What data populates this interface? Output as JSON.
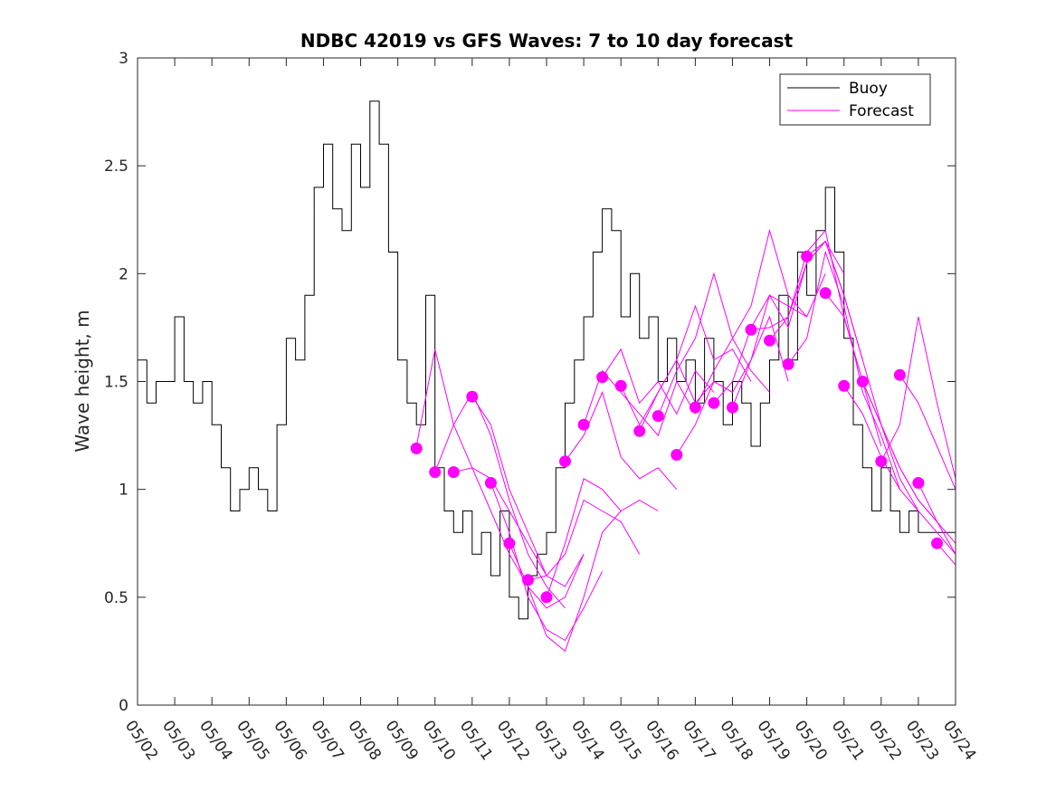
{
  "chart_data": {
    "type": "line",
    "title": "NDBC 42019 vs GFS Waves: 7 to 10 day forecast",
    "xlabel": "",
    "ylabel": "Wave height, m",
    "xlim": [
      "05/02",
      "05/24"
    ],
    "ylim": [
      0,
      3
    ],
    "x_ticks": [
      "05/02",
      "05/03",
      "05/04",
      "05/05",
      "05/06",
      "05/07",
      "05/08",
      "05/09",
      "05/10",
      "05/11",
      "05/12",
      "05/13",
      "05/14",
      "05/15",
      "05/16",
      "05/17",
      "05/18",
      "05/19",
      "05/20",
      "05/21",
      "05/22",
      "05/23",
      "05/24"
    ],
    "y_ticks": [
      "0",
      "0.5",
      "1",
      "1.5",
      "2",
      "2.5",
      "3"
    ],
    "legend": {
      "placement": "top-right",
      "entries": [
        "Buoy",
        "Forecast"
      ]
    },
    "colors": {
      "buoy": "#000000",
      "forecast": "#ff00ff",
      "axes": "#262626"
    },
    "buoy": {
      "name": "Buoy",
      "x": [
        "05/02 00:00",
        "05/02 06:00",
        "05/02 12:00",
        "05/03 00:00",
        "05/03 06:00",
        "05/03 12:00",
        "05/03 18:00",
        "05/04 00:00",
        "05/04 06:00",
        "05/04 12:00",
        "05/04 18:00",
        "05/05 00:00",
        "05/05 06:00",
        "05/05 12:00",
        "05/05 18:00",
        "05/06 00:00",
        "05/06 06:00",
        "05/06 12:00",
        "05/06 18:00",
        "05/07 00:00",
        "05/07 06:00",
        "05/07 12:00",
        "05/07 18:00",
        "05/08 00:00",
        "05/08 06:00",
        "05/08 12:00",
        "05/08 18:00",
        "05/09 00:00",
        "05/09 06:00",
        "05/09 12:00",
        "05/09 18:00",
        "05/10 00:00",
        "05/10 06:00",
        "05/10 12:00",
        "05/10 18:00",
        "05/11 00:00",
        "05/11 06:00",
        "05/11 12:00",
        "05/11 18:00",
        "05/12 00:00",
        "05/12 06:00",
        "05/12 12:00",
        "05/12 18:00",
        "05/13 00:00",
        "05/13 06:00",
        "05/13 12:00",
        "05/13 18:00",
        "05/14 00:00",
        "05/14 06:00",
        "05/14 12:00",
        "05/14 18:00",
        "05/15 00:00",
        "05/15 06:00",
        "05/15 12:00",
        "05/15 18:00",
        "05/16 00:00",
        "05/16 06:00",
        "05/16 12:00",
        "05/16 18:00",
        "05/17 00:00",
        "05/17 06:00",
        "05/17 12:00",
        "05/17 18:00",
        "05/18 00:00",
        "05/18 06:00",
        "05/18 12:00",
        "05/18 18:00",
        "05/19 00:00",
        "05/19 06:00",
        "05/19 12:00",
        "05/19 18:00",
        "05/20 00:00",
        "05/20 06:00",
        "05/20 12:00",
        "05/20 18:00",
        "05/21 00:00",
        "05/21 06:00",
        "05/21 12:00",
        "05/21 18:00",
        "05/22 00:00",
        "05/22 06:00",
        "05/22 12:00",
        "05/22 18:00",
        "05/23 00:00",
        "05/23 06:00",
        "05/23 12:00",
        "05/23 18:00",
        "05/24 00:00"
      ],
      "y": [
        1.6,
        1.4,
        1.5,
        1.8,
        1.5,
        1.4,
        1.5,
        1.3,
        1.1,
        0.9,
        1.0,
        1.1,
        1.0,
        0.9,
        1.3,
        1.7,
        1.6,
        1.9,
        2.4,
        2.6,
        2.3,
        2.2,
        2.6,
        2.4,
        2.8,
        2.6,
        2.1,
        1.6,
        1.4,
        1.3,
        1.9,
        1.1,
        0.9,
        0.8,
        0.9,
        0.7,
        0.8,
        0.6,
        0.9,
        0.5,
        0.4,
        0.6,
        0.7,
        0.8,
        1.1,
        1.4,
        1.6,
        1.8,
        2.1,
        2.3,
        2.2,
        1.8,
        2.0,
        1.7,
        1.8,
        1.5,
        1.7,
        1.5,
        1.6,
        1.4,
        1.7,
        1.5,
        1.3,
        1.5,
        1.4,
        1.2,
        1.4,
        1.6,
        1.9,
        1.6,
        2.1,
        1.9,
        2.2,
        2.4,
        2.1,
        1.7,
        1.3,
        1.1,
        0.9,
        1.1,
        0.9,
        0.8,
        0.9,
        0.8,
        0.8,
        0.8,
        0.8,
        0.8
      ]
    },
    "forecast_series": [
      {
        "x": [
          "05/09 12:00",
          "05/10 00:00",
          "05/10 12:00",
          "05/11 00:00",
          "05/11 12:00",
          "05/12 00:00",
          "05/12 12:00",
          "05/13 00:00"
        ],
        "y": [
          1.2,
          1.65,
          1.3,
          1.1,
          1.05,
          0.9,
          0.75,
          0.6
        ]
      },
      {
        "x": [
          "05/10 00:00",
          "05/10 12:00",
          "05/11 00:00",
          "05/11 12:00",
          "05/12 00:00",
          "05/12 12:00",
          "05/13 00:00",
          "05/13 12:00"
        ],
        "y": [
          1.08,
          1.3,
          1.45,
          1.25,
          0.95,
          0.7,
          0.55,
          0.45
        ]
      },
      {
        "x": [
          "05/10 12:00",
          "05/11 00:00",
          "05/11 12:00",
          "05/12 00:00",
          "05/12 12:00",
          "05/13 00:00",
          "05/13 12:00",
          "05/14 00:00"
        ],
        "y": [
          1.08,
          1.1,
          0.9,
          0.7,
          0.55,
          0.45,
          0.5,
          0.7
        ]
      },
      {
        "x": [
          "05/11 00:00",
          "05/11 12:00",
          "05/12 00:00",
          "05/12 12:00",
          "05/13 00:00",
          "05/13 12:00",
          "05/14 00:00"
        ],
        "y": [
          1.43,
          1.3,
          1.0,
          0.8,
          0.6,
          0.55,
          0.7
        ]
      },
      {
        "x": [
          "05/11 12:00",
          "05/12 00:00",
          "05/12 12:00",
          "05/13 00:00",
          "05/13 12:00",
          "05/14 00:00",
          "05/14 12:00"
        ],
        "y": [
          1.03,
          0.8,
          0.5,
          0.35,
          0.3,
          0.45,
          0.62
        ]
      },
      {
        "x": [
          "05/12 00:00",
          "05/12 12:00",
          "05/13 00:00",
          "05/13 12:00",
          "05/14 00:00",
          "05/14 12:00",
          "05/15 00:00"
        ],
        "y": [
          0.75,
          0.55,
          0.32,
          0.25,
          0.5,
          0.8,
          0.9
        ]
      },
      {
        "x": [
          "05/12 12:00",
          "05/13 00:00",
          "05/13 12:00",
          "05/14 00:00",
          "05/14 12:00",
          "05/15 00:00",
          "05/15 12:00"
        ],
        "y": [
          0.58,
          0.6,
          0.7,
          0.95,
          0.9,
          0.85,
          0.7
        ]
      },
      {
        "x": [
          "05/13 00:00",
          "05/13 12:00",
          "05/14 00:00",
          "05/14 12:00",
          "05/15 00:00",
          "05/15 12:00",
          "05/16 00:00"
        ],
        "y": [
          0.5,
          0.75,
          1.05,
          1.0,
          0.9,
          0.95,
          0.9
        ]
      },
      {
        "x": [
          "05/13 12:00",
          "05/14 00:00",
          "05/14 12:00",
          "05/15 00:00",
          "05/15 12:00",
          "05/16 00:00",
          "05/16 12:00"
        ],
        "y": [
          1.13,
          1.25,
          1.45,
          1.15,
          1.05,
          1.1,
          1.0
        ]
      },
      {
        "x": [
          "05/14 00:00",
          "05/14 12:00",
          "05/15 00:00",
          "05/15 12:00",
          "05/16 00:00",
          "05/16 12:00",
          "05/17 00:00"
        ],
        "y": [
          1.3,
          1.55,
          1.45,
          1.35,
          1.25,
          1.5,
          1.35
        ]
      },
      {
        "x": [
          "05/14 12:00",
          "05/15 00:00",
          "05/15 12:00",
          "05/16 00:00",
          "05/16 12:00",
          "05/17 00:00",
          "05/17 12:00"
        ],
        "y": [
          1.52,
          1.65,
          1.4,
          1.5,
          1.35,
          1.55,
          1.45
        ]
      },
      {
        "x": [
          "05/15 00:00",
          "05/15 12:00",
          "05/16 00:00",
          "05/16 12:00",
          "05/17 00:00",
          "05/17 12:00",
          "05/18 00:00"
        ],
        "y": [
          1.48,
          1.3,
          1.45,
          1.6,
          1.4,
          1.5,
          1.45
        ]
      },
      {
        "x": [
          "05/15 12:00",
          "05/16 00:00",
          "05/16 12:00",
          "05/17 00:00",
          "05/17 12:00",
          "05/18 00:00",
          "05/18 12:00"
        ],
        "y": [
          1.27,
          1.45,
          1.6,
          1.85,
          1.6,
          1.65,
          1.5
        ]
      },
      {
        "x": [
          "05/16 00:00",
          "05/16 12:00",
          "05/17 00:00",
          "05/17 12:00",
          "05/18 00:00",
          "05/18 12:00",
          "05/19 00:00"
        ],
        "y": [
          1.34,
          1.55,
          1.7,
          2.0,
          1.7,
          1.55,
          1.45
        ]
      },
      {
        "x": [
          "05/16 12:00",
          "05/17 00:00",
          "05/17 12:00",
          "05/18 00:00",
          "05/18 12:00",
          "05/19 00:00",
          "05/19 12:00"
        ],
        "y": [
          1.16,
          1.3,
          1.5,
          1.45,
          1.6,
          1.8,
          1.5
        ]
      },
      {
        "x": [
          "05/17 00:00",
          "05/17 12:00",
          "05/18 00:00",
          "05/18 12:00",
          "05/19 00:00",
          "05/19 12:00",
          "05/20 00:00"
        ],
        "y": [
          1.38,
          1.55,
          1.7,
          1.85,
          2.2,
          1.9,
          1.8
        ]
      },
      {
        "x": [
          "05/17 12:00",
          "05/18 00:00",
          "05/18 12:00",
          "05/19 00:00",
          "05/19 12:00",
          "05/20 00:00",
          "05/20 12:00"
        ],
        "y": [
          1.4,
          1.5,
          1.75,
          1.9,
          1.85,
          1.8,
          2.0
        ]
      },
      {
        "x": [
          "05/18 00:00",
          "05/18 12:00",
          "05/19 00:00",
          "05/19 12:00",
          "05/20 00:00",
          "05/20 12:00",
          "05/21 00:00"
        ],
        "y": [
          1.38,
          1.6,
          1.9,
          1.75,
          2.05,
          2.15,
          2.0
        ]
      },
      {
        "x": [
          "05/18 12:00",
          "05/19 00:00",
          "05/19 12:00",
          "05/20 00:00",
          "05/20 12:00",
          "05/21 00:00",
          "05/21 12:00"
        ],
        "y": [
          1.74,
          1.75,
          1.8,
          2.05,
          2.15,
          1.9,
          1.6
        ]
      },
      {
        "x": [
          "05/19 00:00",
          "05/19 12:00",
          "05/20 00:00",
          "05/20 12:00",
          "05/21 00:00",
          "05/21 12:00",
          "05/22 00:00"
        ],
        "y": [
          1.69,
          1.8,
          2.1,
          2.2,
          1.8,
          1.5,
          1.2
        ]
      },
      {
        "x": [
          "05/19 12:00",
          "05/20 00:00",
          "05/20 12:00",
          "05/21 00:00",
          "05/21 12:00",
          "05/22 00:00",
          "05/22 12:00"
        ],
        "y": [
          1.58,
          1.7,
          2.1,
          1.85,
          1.45,
          1.25,
          1.0
        ]
      },
      {
        "x": [
          "05/20 00:00",
          "05/20 12:00",
          "05/21 00:00",
          "05/21 12:00",
          "05/22 00:00",
          "05/22 12:00",
          "05/23 00:00"
        ],
        "y": [
          2.08,
          2.15,
          1.9,
          1.6,
          1.3,
          1.05,
          0.9
        ]
      },
      {
        "x": [
          "05/20 12:00",
          "05/21 00:00",
          "05/21 12:00",
          "05/22 00:00",
          "05/22 12:00",
          "05/23 00:00",
          "05/23 12:00"
        ],
        "y": [
          1.91,
          1.8,
          1.5,
          1.3,
          1.1,
          0.95,
          0.85
        ]
      },
      {
        "x": [
          "05/21 00:00",
          "05/21 12:00",
          "05/22 00:00",
          "05/22 12:00",
          "05/23 00:00",
          "05/23 12:00",
          "05/24 00:00"
        ],
        "y": [
          1.48,
          1.35,
          1.15,
          1.0,
          0.9,
          0.8,
          0.7
        ]
      },
      {
        "x": [
          "05/21 12:00",
          "05/22 00:00",
          "05/22 12:00",
          "05/23 00:00",
          "05/23 12:00",
          "05/24 00:00"
        ],
        "y": [
          1.5,
          1.3,
          1.1,
          0.95,
          0.85,
          0.75
        ]
      },
      {
        "x": [
          "05/22 00:00",
          "05/22 12:00",
          "05/23 00:00",
          "05/23 12:00",
          "05/24 00:00"
        ],
        "y": [
          1.13,
          1.3,
          1.8,
          1.4,
          1.05
        ]
      },
      {
        "x": [
          "05/22 12:00",
          "05/23 00:00",
          "05/23 12:00",
          "05/24 00:00"
        ],
        "y": [
          1.53,
          1.4,
          1.2,
          1.0
        ]
      },
      {
        "x": [
          "05/23 00:00",
          "05/23 12:00",
          "05/24 00:00"
        ],
        "y": [
          1.03,
          0.85,
          0.7
        ]
      },
      {
        "x": [
          "05/23 12:00",
          "05/24 00:00"
        ],
        "y": [
          0.75,
          0.65
        ]
      }
    ],
    "forecast_start_points": {
      "x": [
        "05/09 12:00",
        "05/10 00:00",
        "05/10 12:00",
        "05/11 00:00",
        "05/11 12:00",
        "05/12 00:00",
        "05/12 12:00",
        "05/13 00:00",
        "05/13 12:00",
        "05/14 00:00",
        "05/14 12:00",
        "05/15 00:00",
        "05/15 12:00",
        "05/16 00:00",
        "05/16 12:00",
        "05/17 00:00",
        "05/17 12:00",
        "05/18 00:00",
        "05/18 12:00",
        "05/19 00:00",
        "05/19 12:00",
        "05/20 00:00",
        "05/20 12:00",
        "05/21 00:00",
        "05/21 12:00",
        "05/22 00:00",
        "05/22 12:00",
        "05/23 00:00",
        "05/23 12:00"
      ],
      "y": [
        1.19,
        1.08,
        1.08,
        1.43,
        1.03,
        0.75,
        0.58,
        0.5,
        1.13,
        1.3,
        1.52,
        1.48,
        1.27,
        1.34,
        1.16,
        1.38,
        1.4,
        1.38,
        1.74,
        1.69,
        1.58,
        2.08,
        1.91,
        1.48,
        1.5,
        1.13,
        1.53,
        1.03,
        0.75
      ]
    }
  }
}
